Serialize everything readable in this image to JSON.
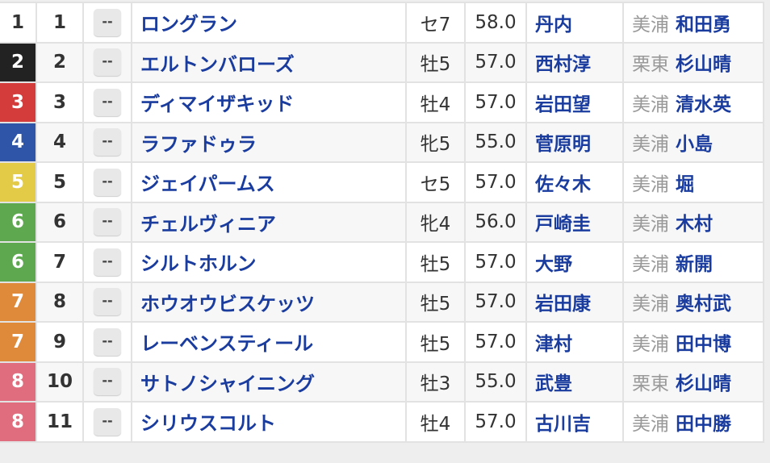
{
  "frame_colors": {
    "1": "#ffffff",
    "2": "#222222",
    "3": "#d43c3c",
    "4": "#2f55a8",
    "5": "#e3cb48",
    "6": "#5ea84f",
    "7": "#df8a3b",
    "8": "#df6d7d"
  },
  "rows": [
    {
      "waku": "1",
      "umaban": "1",
      "odds": "--",
      "horse": "ロングラン",
      "sex_age": "セ7",
      "weight": "58.0",
      "jockey": "丹内",
      "region": "美浦",
      "trainer": "和田勇"
    },
    {
      "waku": "2",
      "umaban": "2",
      "odds": "--",
      "horse": "エルトンバローズ",
      "sex_age": "牡5",
      "weight": "57.0",
      "jockey": "西村淳",
      "region": "栗東",
      "trainer": "杉山晴"
    },
    {
      "waku": "3",
      "umaban": "3",
      "odds": "--",
      "horse": "ディマイザキッド",
      "sex_age": "牡4",
      "weight": "57.0",
      "jockey": "岩田望",
      "region": "美浦",
      "trainer": "清水英"
    },
    {
      "waku": "4",
      "umaban": "4",
      "odds": "--",
      "horse": "ラファドゥラ",
      "sex_age": "牝5",
      "weight": "55.0",
      "jockey": "菅原明",
      "region": "美浦",
      "trainer": "小島"
    },
    {
      "waku": "5",
      "umaban": "5",
      "odds": "--",
      "horse": "ジェイパームス",
      "sex_age": "セ5",
      "weight": "57.0",
      "jockey": "佐々木",
      "region": "美浦",
      "trainer": "堀"
    },
    {
      "waku": "6",
      "umaban": "6",
      "odds": "--",
      "horse": "チェルヴィニア",
      "sex_age": "牝4",
      "weight": "56.0",
      "jockey": "戸崎圭",
      "region": "美浦",
      "trainer": "木村"
    },
    {
      "waku": "6",
      "umaban": "7",
      "odds": "--",
      "horse": "シルトホルン",
      "sex_age": "牡5",
      "weight": "57.0",
      "jockey": "大野",
      "region": "美浦",
      "trainer": "新開"
    },
    {
      "waku": "7",
      "umaban": "8",
      "odds": "--",
      "horse": "ホウオウビスケッツ",
      "sex_age": "牡5",
      "weight": "57.0",
      "jockey": "岩田康",
      "region": "美浦",
      "trainer": "奥村武"
    },
    {
      "waku": "7",
      "umaban": "9",
      "odds": "--",
      "horse": "レーベンスティール",
      "sex_age": "牡5",
      "weight": "57.0",
      "jockey": "津村",
      "region": "美浦",
      "trainer": "田中博"
    },
    {
      "waku": "8",
      "umaban": "10",
      "odds": "--",
      "horse": "サトノシャイニング",
      "sex_age": "牡3",
      "weight": "55.0",
      "jockey": "武豊",
      "region": "栗東",
      "trainer": "杉山晴"
    },
    {
      "waku": "8",
      "umaban": "11",
      "odds": "--",
      "horse": "シリウスコルト",
      "sex_age": "牡4",
      "weight": "57.0",
      "jockey": "古川吉",
      "region": "美浦",
      "trainer": "田中勝"
    }
  ]
}
